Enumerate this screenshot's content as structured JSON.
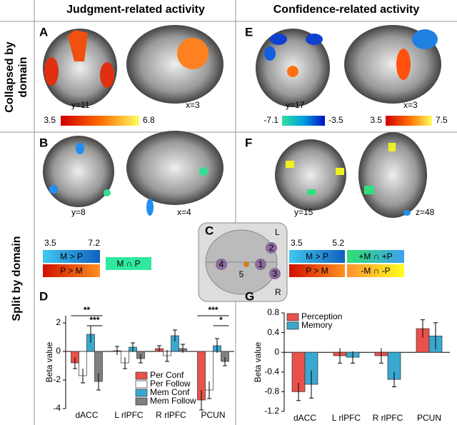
{
  "headers": {
    "left": "Judgment-related activity",
    "right": "Confidence-related activity"
  },
  "row_labels": {
    "collapsed": [
      "Collapsed by",
      "domain"
    ],
    "split": "Split by domain"
  },
  "panels": {
    "A": {
      "letter": "A",
      "slice_labels": [
        "y=11",
        "x=3"
      ],
      "scale_labels": [
        "3.5",
        "6.8"
      ]
    },
    "E": {
      "letter": "E",
      "slice_labels": [
        "y=17",
        "x=3"
      ],
      "scale_labels": [
        "-7.1",
        "-3.5",
        "3.5",
        "7.5"
      ]
    },
    "B": {
      "letter": "B",
      "slice_labels": [
        "y=8",
        "x=4"
      ],
      "scale_labels": [
        "3.5",
        "7.2"
      ],
      "legend": [
        "M > P",
        "P > M",
        "M ∩ P"
      ]
    },
    "F": {
      "letter": "F",
      "slice_labels": [
        "y=15",
        "z=48"
      ],
      "scale_labels": [
        "3.5",
        "5.2"
      ],
      "legend": [
        "M > P",
        "P > M",
        "+M ∩ +P",
        "-M ∩ -P"
      ]
    },
    "C": {
      "letter": "C",
      "side_labels": [
        "L",
        "R"
      ],
      "regions": [
        "1",
        "2",
        "3",
        "4",
        "5"
      ]
    },
    "D": {
      "letter": "D"
    },
    "G": {
      "letter": "G"
    }
  },
  "chart_data": [
    {
      "type": "bar",
      "ylabel": "Beta value",
      "categories": [
        "dACC",
        "L rlPFC",
        "R rlPFC",
        "PCUN"
      ],
      "series": [
        {
          "name": "Per Conf",
          "color": "#e8524a",
          "values": [
            -0.8,
            0.05,
            0.2,
            -3.4
          ],
          "errors": [
            0.4,
            0.3,
            0.2,
            0.7
          ]
        },
        {
          "name": "Per Follow",
          "color": "#ffffff",
          "values": [
            -1.7,
            -0.8,
            -0.3,
            -2.7
          ],
          "errors": [
            0.5,
            0.4,
            0.4,
            0.6
          ]
        },
        {
          "name": "Mem Conf",
          "color": "#3aa8d0",
          "values": [
            1.2,
            0.3,
            1.1,
            0.4
          ],
          "errors": [
            0.6,
            0.3,
            0.4,
            0.5
          ]
        },
        {
          "name": "Mem Follow",
          "color": "#808080",
          "values": [
            -2.1,
            -0.5,
            0.2,
            -0.7
          ],
          "errors": [
            0.6,
            0.3,
            0.3,
            0.3
          ]
        }
      ],
      "ylim": [
        -4,
        2.5
      ],
      "yticks": [
        -4,
        -2,
        0,
        2
      ],
      "legend": "lower center",
      "annotations": [
        {
          "text": "**"
        },
        {
          "text": "***"
        },
        {
          "text": "***"
        },
        {
          "text": "*"
        }
      ]
    },
    {
      "type": "bar",
      "ylabel": "Beta value",
      "categories": [
        "dACC",
        "L rlPFC",
        "R rlPFC",
        "PCUN"
      ],
      "series": [
        {
          "name": "Perception",
          "color": "#e8524a",
          "values": [
            -0.8,
            -0.07,
            -0.07,
            0.48
          ],
          "errors": [
            0.18,
            0.15,
            0.15,
            0.18
          ]
        },
        {
          "name": "Memory",
          "color": "#3aa8d0",
          "values": [
            -0.65,
            -0.1,
            -0.55,
            0.33
          ],
          "errors": [
            0.28,
            0.12,
            0.15,
            0.27
          ]
        }
      ],
      "ylim": [
        -1.2,
        0.8
      ],
      "yticks": [
        -1.2,
        -0.8,
        -0.4,
        0,
        0.4,
        0.8
      ],
      "legend": "upper left"
    }
  ]
}
